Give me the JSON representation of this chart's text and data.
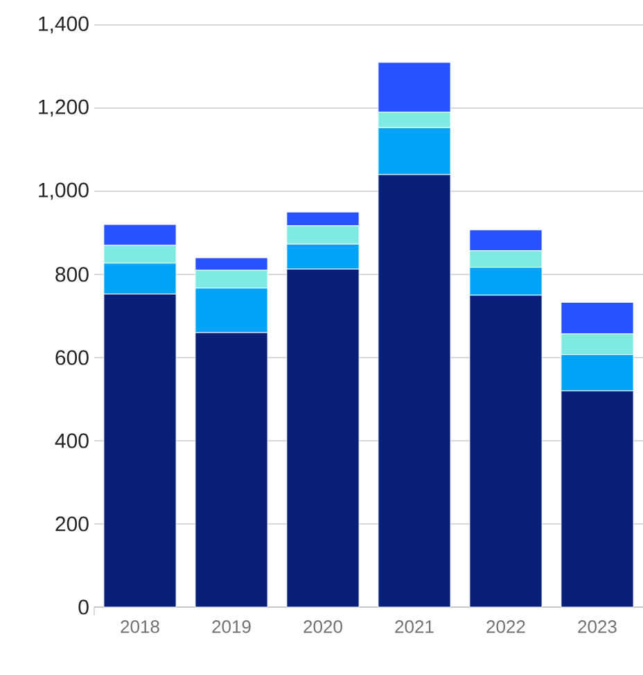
{
  "chart_data": {
    "type": "bar",
    "stacked": true,
    "categories": [
      "2018",
      "2019",
      "2020",
      "2021",
      "2022",
      "2023"
    ],
    "series": [
      {
        "color": "#0a1f78",
        "values": [
          753,
          660,
          813,
          1040,
          750,
          520
        ]
      },
      {
        "color": "#00a3f5",
        "values": [
          74,
          107,
          60,
          113,
          67,
          87
        ]
      },
      {
        "color": "#7eeae2",
        "values": [
          43,
          43,
          44,
          37,
          40,
          50
        ]
      },
      {
        "color": "#2952ff",
        "values": [
          50,
          30,
          33,
          120,
          50,
          76
        ]
      }
    ],
    "ylim": [
      0,
      1400
    ],
    "yticks": [
      {
        "value": 0,
        "label": "0"
      },
      {
        "value": 200,
        "label": "200"
      },
      {
        "value": 400,
        "label": "400"
      },
      {
        "value": 600,
        "label": "600"
      },
      {
        "value": 800,
        "label": "800"
      },
      {
        "value": 1000,
        "label": "1,000"
      },
      {
        "value": 1200,
        "label": "1,200"
      },
      {
        "value": 1400,
        "label": "1,400"
      }
    ],
    "grid": "y"
  }
}
